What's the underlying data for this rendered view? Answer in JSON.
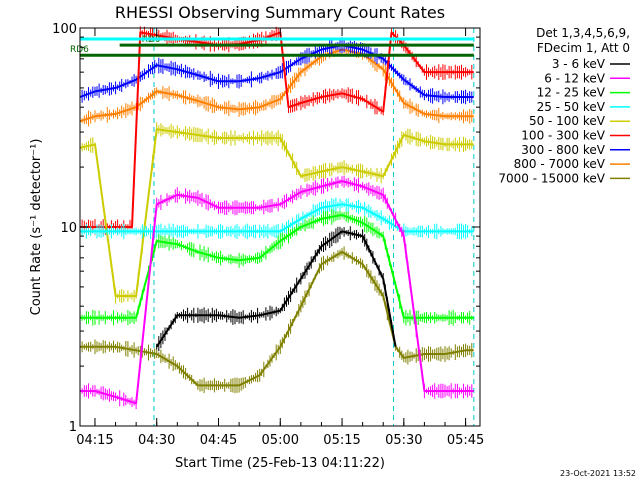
{
  "chart_data": {
    "type": "line",
    "title": "RHESSI Observing Summary Count Rates",
    "xlabel": "Start Time (25-Feb-13 04:11:22)",
    "ylabel": "Count Rate (s⁻¹ detector⁻¹)",
    "x_scale": "time",
    "y_scale": "log",
    "xlim": [
      "04:11:22",
      "05:48:30"
    ],
    "ylim": [
      1,
      100
    ],
    "x_ticks": [
      "04:15",
      "04:30",
      "04:45",
      "05:00",
      "05:15",
      "05:30",
      "05:45"
    ],
    "y_ticks": [
      "1",
      "10",
      "100"
    ],
    "legend": {
      "placement": "right",
      "header": [
        "Det 1,3,4,5,6,9,",
        "FDecim 1, Att 0"
      ]
    },
    "attenuator_labels": [
      {
        "label": "RD0",
        "from": "04:21",
        "to": "05:47",
        "y": 82
      },
      {
        "label": "RD6",
        "from": "04:11:22",
        "to": "05:47",
        "y": 73
      }
    ],
    "vertical_markers": [
      "04:29:20",
      "05:27:30",
      "05:47"
    ],
    "series": [
      {
        "name": "3 - 6 keV",
        "color": "#000000",
        "x": [
          "04:30",
          "04:35",
          "04:40",
          "04:45",
          "04:50",
          "04:55",
          "05:00",
          "05:05",
          "05:10",
          "05:15",
          "05:20",
          "05:25",
          "05:28"
        ],
        "y": [
          2.5,
          3.6,
          3.6,
          3.6,
          3.5,
          3.6,
          3.8,
          5.5,
          8.0,
          9.5,
          9.0,
          5.5,
          2.5
        ]
      },
      {
        "name": "6 - 12 keV",
        "color": "#ff00ff",
        "x": [
          "04:11:22",
          "04:15",
          "04:20",
          "04:25",
          "04:30",
          "04:35",
          "04:40",
          "04:45",
          "04:50",
          "04:55",
          "05:00",
          "05:05",
          "05:10",
          "05:15",
          "05:20",
          "05:25",
          "05:30",
          "05:35",
          "05:40",
          "05:45",
          "05:47"
        ],
        "y": [
          1.5,
          1.5,
          1.4,
          1.3,
          13.0,
          14.5,
          14.0,
          12.5,
          12.5,
          12.5,
          13.0,
          15.0,
          16.0,
          17.0,
          16.0,
          14.5,
          9.0,
          1.5,
          1.5,
          1.5,
          1.5
        ]
      },
      {
        "name": "12 - 25 keV",
        "color": "#00ff00",
        "x": [
          "04:11:22",
          "04:15",
          "04:20",
          "04:25",
          "04:30",
          "04:35",
          "04:40",
          "04:45",
          "04:50",
          "04:55",
          "05:00",
          "05:05",
          "05:10",
          "05:15",
          "05:20",
          "05:25",
          "05:30",
          "05:35",
          "05:40",
          "05:45",
          "05:47"
        ],
        "y": [
          3.5,
          3.5,
          3.5,
          3.5,
          8.5,
          8.2,
          7.5,
          7.0,
          6.8,
          7.0,
          8.5,
          10.0,
          11.0,
          11.5,
          10.5,
          9.0,
          3.5,
          3.5,
          3.5,
          3.5,
          3.5
        ]
      },
      {
        "name": "25 - 50 keV",
        "color": "#00ffff",
        "x": [
          "04:11:22",
          "04:15",
          "04:20",
          "04:25",
          "04:30",
          "04:35",
          "04:40",
          "04:45",
          "04:50",
          "04:55",
          "05:00",
          "05:05",
          "05:10",
          "05:15",
          "05:20",
          "05:25",
          "05:30",
          "05:35",
          "05:40",
          "05:45",
          "05:47"
        ],
        "y": [
          9.5,
          9.5,
          9.5,
          9.5,
          9.5,
          9.5,
          9.5,
          9.5,
          9.5,
          9.5,
          9.5,
          11.0,
          12.5,
          13.0,
          12.5,
          11.0,
          9.5,
          9.5,
          9.5,
          9.5,
          9.5
        ]
      },
      {
        "name": "50 - 100 keV",
        "color": "#cccc00",
        "x": [
          "04:11:22",
          "04:15",
          "04:20",
          "04:25",
          "04:30",
          "04:35",
          "04:40",
          "04:45",
          "04:50",
          "04:55",
          "05:00",
          "05:05",
          "05:10",
          "05:15",
          "05:20",
          "05:25",
          "05:30",
          "05:35",
          "05:40",
          "05:45",
          "05:47"
        ],
        "y": [
          25,
          26,
          4.5,
          4.5,
          31,
          30,
          29,
          28,
          28,
          28,
          28,
          18,
          19,
          20,
          19,
          18,
          29,
          27,
          26,
          26,
          26
        ]
      },
      {
        "name": "100 - 300 keV",
        "color": "#ff0000",
        "x": [
          "04:11:22",
          "04:15",
          "04:17",
          "04:24",
          "04:26",
          "04:30",
          "04:35",
          "04:40",
          "04:45",
          "04:50",
          "04:55",
          "05:00",
          "05:02",
          "05:05",
          "05:10",
          "05:15",
          "05:20",
          "05:25",
          "05:27",
          "05:30",
          "05:35",
          "05:40",
          "05:45",
          "05:47"
        ],
        "y": [
          10,
          10,
          10,
          10,
          95,
          92,
          88,
          85,
          82,
          83,
          87,
          95,
          40,
          42,
          45,
          47,
          44,
          38,
          95,
          82,
          60,
          60,
          60,
          60
        ]
      },
      {
        "name": "300 - 800 keV",
        "color": "#0000ff",
        "x": [
          "04:11:22",
          "04:15",
          "04:20",
          "04:25",
          "04:30",
          "04:35",
          "04:40",
          "04:45",
          "04:50",
          "04:55",
          "05:00",
          "05:05",
          "05:10",
          "05:15",
          "05:20",
          "05:25",
          "05:30",
          "05:35",
          "05:40",
          "05:45",
          "05:47"
        ],
        "y": [
          45,
          48,
          50,
          55,
          65,
          62,
          58,
          54,
          54,
          56,
          60,
          70,
          78,
          82,
          78,
          70,
          55,
          46,
          45,
          45,
          45
        ]
      },
      {
        "name": "800 - 7000 keV",
        "color": "#ff8000",
        "x": [
          "04:11:22",
          "04:15",
          "04:20",
          "04:25",
          "04:30",
          "04:35",
          "04:40",
          "04:45",
          "04:50",
          "04:55",
          "05:00",
          "05:05",
          "05:10",
          "05:15",
          "05:20",
          "05:25",
          "05:30",
          "05:35",
          "05:40",
          "05:45",
          "05:47"
        ],
        "y": [
          34,
          36,
          37,
          40,
          48,
          46,
          43,
          40,
          39,
          40,
          44,
          60,
          72,
          78,
          74,
          62,
          42,
          37,
          36,
          36,
          36
        ]
      },
      {
        "name": "7000 - 15000 keV",
        "color": "#808000",
        "x": [
          "04:11:22",
          "04:15",
          "04:20",
          "04:25",
          "04:30",
          "04:35",
          "04:40",
          "04:45",
          "04:50",
          "04:55",
          "05:00",
          "05:05",
          "05:10",
          "05:15",
          "05:20",
          "05:25",
          "05:28",
          "05:30",
          "05:35",
          "05:40",
          "05:45",
          "05:47"
        ],
        "y": [
          2.5,
          2.5,
          2.5,
          2.4,
          2.3,
          2.0,
          1.6,
          1.6,
          1.6,
          1.8,
          2.5,
          4.0,
          6.5,
          7.5,
          6.5,
          4.5,
          2.5,
          2.2,
          2.3,
          2.3,
          2.4,
          2.4
        ]
      }
    ]
  },
  "timestamp": "23-Oct-2021 13:52"
}
